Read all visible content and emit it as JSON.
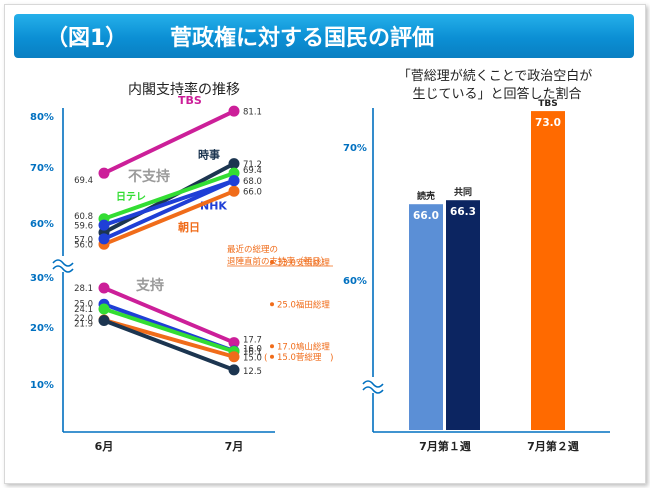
{
  "header": {
    "figure_label": "（図1）",
    "title": "菅政権に対する国民の評価"
  },
  "chart_data": [
    {
      "type": "line",
      "title": "内閣支持率の推移",
      "categories": [
        "6月",
        "7月"
      ],
      "y_ticks_upper": [
        "80%",
        "70%",
        "60%"
      ],
      "y_ticks_lower": [
        "30%",
        "20%",
        "10%"
      ],
      "axis_break": true,
      "group_labels": {
        "support": "支持",
        "nonsupport": "不支持"
      },
      "series": [
        {
          "name": "TBS",
          "group": "nonsupport",
          "color": "#cc1f99",
          "values": [
            69.4,
            81.1
          ],
          "labels": [
            "69.4",
            "81.1"
          ]
        },
        {
          "name": "時事",
          "group": "nonsupport",
          "color": "#1c3550",
          "values": [
            58.2,
            71.2
          ],
          "labels": [
            "",
            "71.2"
          ]
        },
        {
          "name": "日テレ",
          "group": "nonsupport",
          "color": "#33dd33",
          "values": [
            60.8,
            69.4
          ],
          "labels": [
            "60.8",
            "69.4"
          ]
        },
        {
          "name": "NHK",
          "group": "nonsupport",
          "color": "#1f3fd6",
          "values": [
            59.6,
            68.0
          ],
          "labels": [
            "59.6",
            "68.0"
          ]
        },
        {
          "name": "朝日",
          "group": "nonsupport",
          "color": "#f06c1a",
          "values": [
            56.0,
            66.0
          ],
          "labels": [
            "56.0",
            "66.0"
          ]
        },
        {
          "name": "",
          "group": "nonsupport",
          "color": "#1f3fd6",
          "values": [
            57.0,
            68.0
          ],
          "labels": [
            "57.0",
            ""
          ]
        },
        {
          "name": "TBS",
          "group": "support",
          "color": "#cc1f99",
          "values": [
            28.1,
            17.7
          ],
          "labels": [
            "28.1",
            "17.7"
          ]
        },
        {
          "name": "NHK",
          "group": "support",
          "color": "#1f3fd6",
          "values": [
            25.0,
            16.1
          ],
          "labels": [
            "25.0",
            "16.1"
          ]
        },
        {
          "name": "日テレ",
          "group": "support",
          "color": "#33dd33",
          "values": [
            24.1,
            16.0
          ],
          "labels": [
            "24.1",
            "16.0"
          ]
        },
        {
          "name": "朝日",
          "group": "support",
          "color": "#f06c1a",
          "values": [
            22.0,
            15.0
          ],
          "labels": [
            "22.0",
            "15.0"
          ]
        },
        {
          "name": "時事",
          "group": "support",
          "color": "#1c3550",
          "values": [
            21.9,
            12.5
          ],
          "labels": [
            "21.9",
            "12.5"
          ]
        }
      ],
      "annotation": {
        "title_line1": "最近の総理の",
        "title_line2": "退陣直前の支持率（朝日）",
        "items": [
          {
            "value": 33.0,
            "label": "33.0安倍総理"
          },
          {
            "value": 25.0,
            "label": "25.0福田総理"
          },
          {
            "value": 17.0,
            "label": "17.0鳩山総理"
          },
          {
            "value": 15.0,
            "label": "15.0菅総理"
          }
        ],
        "color": "#f06c1a"
      }
    },
    {
      "type": "bar",
      "title_line1": "「菅総理が続くことで政治空白が",
      "title_line2": "生じている」と回答した割合",
      "categories": [
        "7月第１週",
        "7月第２週"
      ],
      "y_ticks": [
        "70%",
        "60%"
      ],
      "axis_break": true,
      "series": [
        {
          "name": "読売",
          "category": "7月第１週",
          "value": 66.0,
          "label": "66.0",
          "color": "#5b8fd6"
        },
        {
          "name": "共同",
          "category": "7月第１週",
          "value": 66.3,
          "label": "66.3",
          "color": "#0c2561"
        },
        {
          "name": "TBS",
          "category": "7月第２週",
          "value": 73.0,
          "label": "73.0",
          "color": "#ff6a00"
        }
      ]
    }
  ]
}
